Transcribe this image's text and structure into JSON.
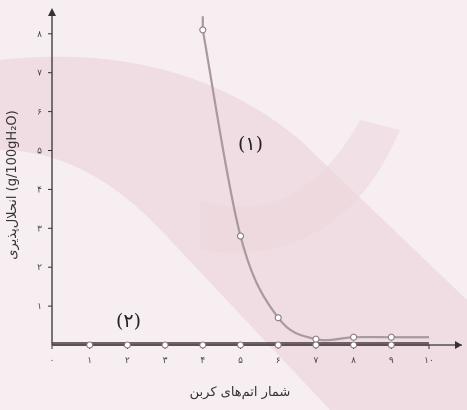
{
  "chart_data": {
    "type": "line",
    "xlabel": "شمار اتم‌های کربن",
    "ylabel": "انحلال‌پذیری (g/100gH₂O)",
    "xlim": [
      0,
      10
    ],
    "ylim": [
      0,
      8.5
    ],
    "x_ticks": [
      0,
      1,
      2,
      3,
      4,
      5,
      6,
      7,
      8,
      9,
      10
    ],
    "x_tick_labels": [
      "۰",
      "۱",
      "۲",
      "۳",
      "۴",
      "۵",
      "۶",
      "۷",
      "۸",
      "۹",
      "۱۰"
    ],
    "y_ticks": [
      1,
      2,
      3,
      4,
      5,
      6,
      7,
      8
    ],
    "y_tick_labels": [
      "۱",
      "۲",
      "۳",
      "۴",
      "۵",
      "۶",
      "۷",
      "۸"
    ],
    "grid": false,
    "series": [
      {
        "name": "(۱)",
        "color": "#a8999e",
        "points": [
          [
            4,
            8.1
          ],
          [
            5,
            2.8
          ],
          [
            6,
            0.7
          ],
          [
            7,
            0.15
          ],
          [
            8,
            0.2
          ],
          [
            9,
            0.2
          ]
        ]
      },
      {
        "name": "(۲)",
        "color": "#5a4a4e",
        "points": [
          [
            1,
            0
          ],
          [
            2,
            0
          ],
          [
            3,
            0
          ],
          [
            4,
            0
          ],
          [
            5,
            0
          ],
          [
            6,
            0
          ],
          [
            7,
            0
          ],
          [
            8,
            0
          ],
          [
            9,
            0
          ]
        ]
      }
    ]
  },
  "colors": {
    "background": "#f7eef1",
    "watermark": "#ebd3db",
    "axis": "#333333"
  }
}
